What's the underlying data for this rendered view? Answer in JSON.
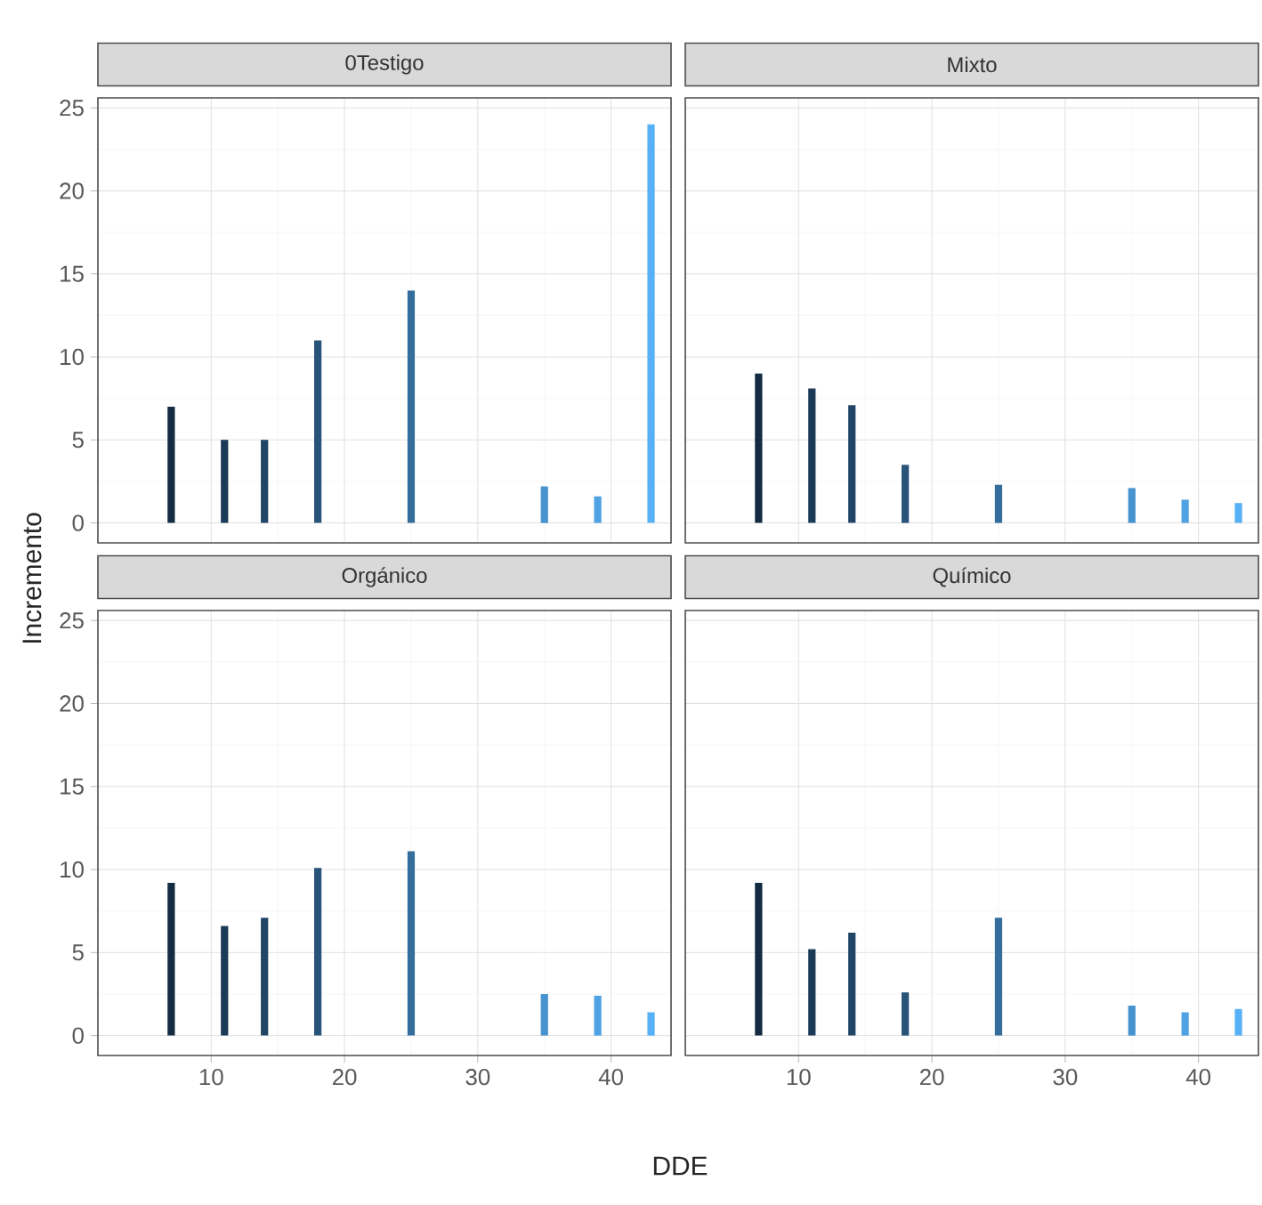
{
  "chart_data": [
    {
      "type": "bar",
      "title": "0Testigo",
      "ylabel": "Incremento",
      "x": [
        7,
        11,
        14,
        18,
        25,
        35,
        39,
        43
      ],
      "values": [
        7,
        5,
        5,
        11,
        14,
        2.2,
        1.6,
        24
      ],
      "colors": [
        "#132b43",
        "#1a3a57",
        "#204566",
        "#28547a",
        "#356e9d",
        "#4793cf",
        "#4fa2e3",
        "#56b1f7"
      ],
      "xlim": [
        1.5,
        44.5
      ],
      "ylim": [
        -1.2,
        25.6
      ],
      "xticks": [
        10,
        20,
        30,
        40
      ],
      "yticks": [
        0,
        5,
        10,
        15,
        20,
        25
      ],
      "grid": true,
      "tick_labels": "y"
    },
    {
      "type": "bar",
      "title": "Mixto",
      "x": [
        7,
        11,
        14,
        18,
        25,
        35,
        39,
        43
      ],
      "values": [
        9,
        8.1,
        7.1,
        3.5,
        2.3,
        2.1,
        1.4,
        1.2
      ],
      "colors": [
        "#132b43",
        "#1a3a57",
        "#204566",
        "#28547a",
        "#356e9d",
        "#4793cf",
        "#4fa2e3",
        "#56b1f7"
      ],
      "xlim": [
        1.5,
        44.5
      ],
      "ylim": [
        -1.2,
        25.6
      ],
      "xticks": [
        10,
        20,
        30,
        40
      ],
      "yticks": [
        0,
        5,
        10,
        15,
        20,
        25
      ],
      "grid": true,
      "tick_labels": false
    },
    {
      "type": "bar",
      "title": "Orgánico",
      "xlabel": "DDE",
      "x": [
        7,
        11,
        14,
        18,
        25,
        35,
        39,
        43
      ],
      "values": [
        9.2,
        6.6,
        7.1,
        10.1,
        11.1,
        2.5,
        2.4,
        1.4
      ],
      "colors": [
        "#132b43",
        "#1a3a57",
        "#204566",
        "#28547a",
        "#356e9d",
        "#4793cf",
        "#4fa2e3",
        "#56b1f7"
      ],
      "xlim": [
        1.5,
        44.5
      ],
      "ylim": [
        -1.2,
        25.6
      ],
      "xticks": [
        10,
        20,
        30,
        40
      ],
      "yticks": [
        0,
        5,
        10,
        15,
        20,
        25
      ],
      "grid": true
    },
    {
      "type": "bar",
      "title": "Químico",
      "x": [
        7,
        11,
        14,
        18,
        25,
        35,
        39,
        43
      ],
      "values": [
        9.2,
        5.2,
        6.2,
        2.6,
        7.1,
        1.8,
        1.4,
        1.6
      ],
      "colors": [
        "#132b43",
        "#1a3a57",
        "#204566",
        "#28547a",
        "#356e9d",
        "#4793cf",
        "#4fa2e3",
        "#56b1f7"
      ],
      "xlim": [
        1.5,
        44.5
      ],
      "ylim": [
        -1.2,
        25.6
      ],
      "xticks": [
        10,
        20,
        30,
        40
      ],
      "yticks": [
        0,
        5,
        10,
        15,
        20,
        25
      ],
      "grid": true,
      "tick_labels": "x"
    }
  ]
}
